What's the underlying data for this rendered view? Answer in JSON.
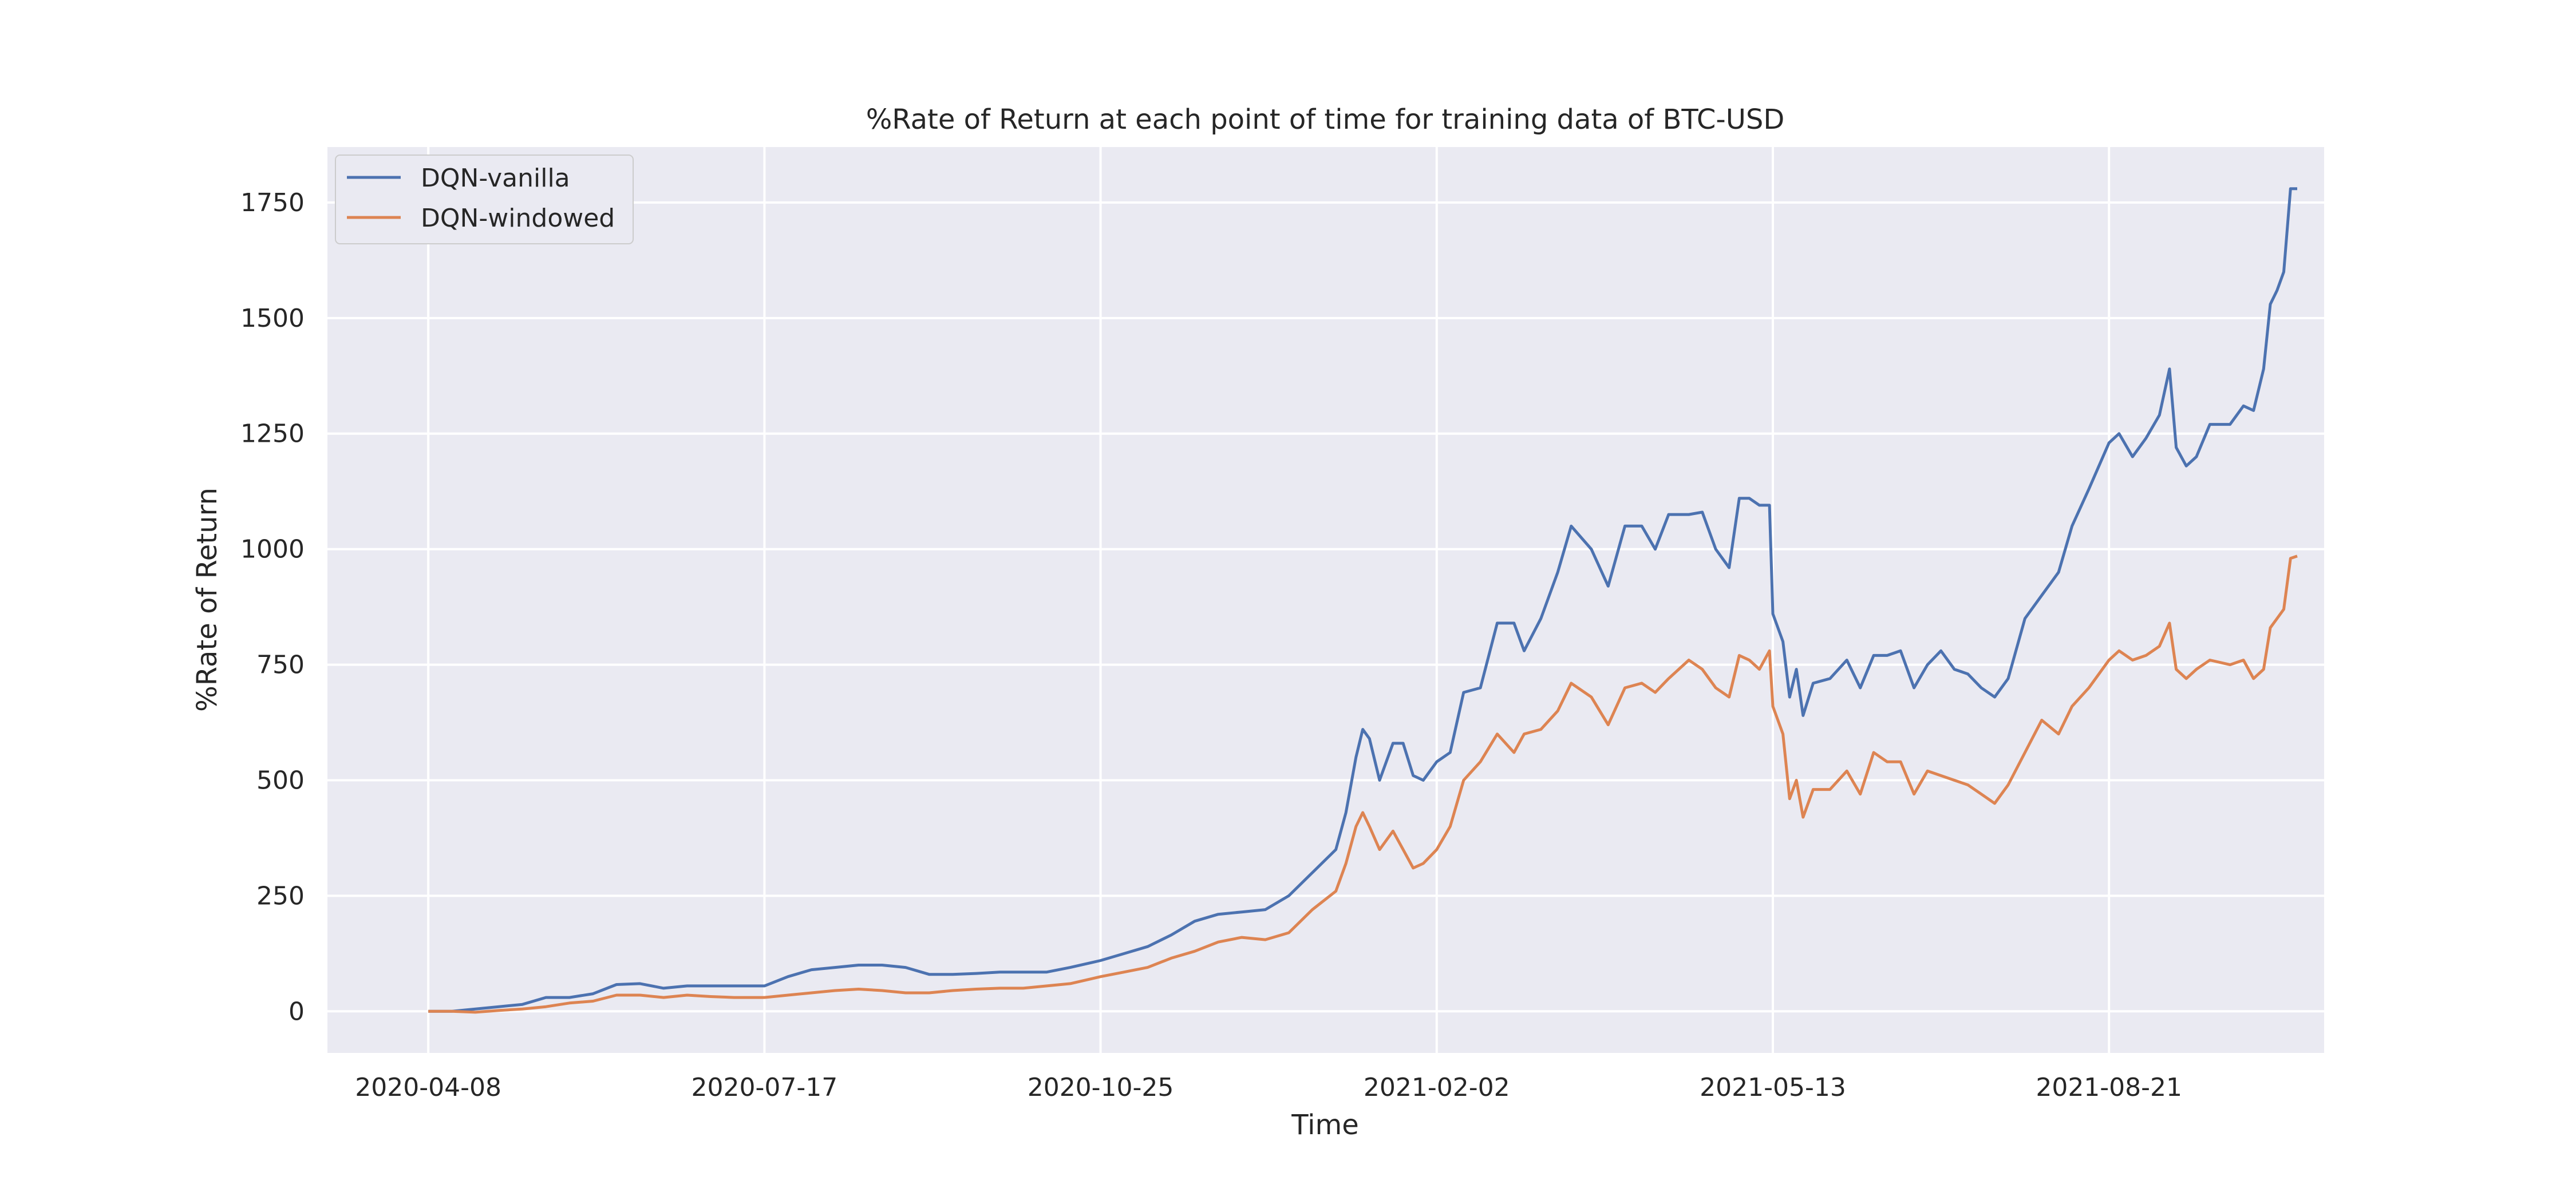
{
  "chart_data": {
    "type": "line",
    "title": "%Rate of Return at each point of time for training data of BTC-USD",
    "xlabel": "Time",
    "ylabel": "%Rate of Return",
    "x_range": [
      "2020-03-09",
      "2021-10-24"
    ],
    "ylim": [
      -90,
      1870
    ],
    "x_ticks": [
      "2020-04-08",
      "2020-07-17",
      "2020-10-25",
      "2021-02-02",
      "2021-05-13",
      "2021-08-21"
    ],
    "y_ticks": [
      0,
      250,
      500,
      750,
      1000,
      1250,
      1500,
      1750
    ],
    "grid": true,
    "legend_position": "top-left",
    "colors": {
      "background": "#eaeaf2",
      "grid": "#ffffff"
    },
    "series": [
      {
        "name": "DQN-vanilla",
        "color": "#4c72b0",
        "points": [
          [
            "2020-04-08",
            0
          ],
          [
            "2020-04-15",
            0
          ],
          [
            "2020-04-22",
            5
          ],
          [
            "2020-04-29",
            10
          ],
          [
            "2020-05-06",
            15
          ],
          [
            "2020-05-13",
            30
          ],
          [
            "2020-05-20",
            30
          ],
          [
            "2020-05-27",
            38
          ],
          [
            "2020-06-03",
            58
          ],
          [
            "2020-06-10",
            60
          ],
          [
            "2020-06-17",
            50
          ],
          [
            "2020-06-24",
            55
          ],
          [
            "2020-07-01",
            55
          ],
          [
            "2020-07-08",
            55
          ],
          [
            "2020-07-17",
            55
          ],
          [
            "2020-07-24",
            75
          ],
          [
            "2020-07-31",
            90
          ],
          [
            "2020-08-07",
            95
          ],
          [
            "2020-08-14",
            100
          ],
          [
            "2020-08-21",
            100
          ],
          [
            "2020-08-28",
            95
          ],
          [
            "2020-09-04",
            80
          ],
          [
            "2020-09-11",
            80
          ],
          [
            "2020-09-18",
            82
          ],
          [
            "2020-09-25",
            85
          ],
          [
            "2020-10-02",
            85
          ],
          [
            "2020-10-09",
            85
          ],
          [
            "2020-10-16",
            95
          ],
          [
            "2020-10-25",
            110
          ],
          [
            "2020-11-01",
            125
          ],
          [
            "2020-11-08",
            140
          ],
          [
            "2020-11-15",
            165
          ],
          [
            "2020-11-22",
            195
          ],
          [
            "2020-11-29",
            210
          ],
          [
            "2020-12-06",
            215
          ],
          [
            "2020-12-13",
            220
          ],
          [
            "2020-12-20",
            250
          ],
          [
            "2020-12-27",
            300
          ],
          [
            "2021-01-03",
            350
          ],
          [
            "2021-01-06",
            430
          ],
          [
            "2021-01-09",
            550
          ],
          [
            "2021-01-11",
            610
          ],
          [
            "2021-01-13",
            590
          ],
          [
            "2021-01-16",
            500
          ],
          [
            "2021-01-20",
            580
          ],
          [
            "2021-01-23",
            580
          ],
          [
            "2021-01-26",
            510
          ],
          [
            "2021-01-29",
            500
          ],
          [
            "2021-02-02",
            540
          ],
          [
            "2021-02-06",
            560
          ],
          [
            "2021-02-10",
            690
          ],
          [
            "2021-02-15",
            700
          ],
          [
            "2021-02-20",
            840
          ],
          [
            "2021-02-25",
            840
          ],
          [
            "2021-02-28",
            780
          ],
          [
            "2021-03-05",
            850
          ],
          [
            "2021-03-10",
            950
          ],
          [
            "2021-03-14",
            1050
          ],
          [
            "2021-03-20",
            1000
          ],
          [
            "2021-03-25",
            920
          ],
          [
            "2021-03-30",
            1050
          ],
          [
            "2021-04-04",
            1050
          ],
          [
            "2021-04-08",
            1000
          ],
          [
            "2021-04-12",
            1075
          ],
          [
            "2021-04-18",
            1075
          ],
          [
            "2021-04-22",
            1080
          ],
          [
            "2021-04-26",
            1000
          ],
          [
            "2021-04-30",
            960
          ],
          [
            "2021-05-03",
            1110
          ],
          [
            "2021-05-06",
            1110
          ],
          [
            "2021-05-09",
            1095
          ],
          [
            "2021-05-12",
            1095
          ],
          [
            "2021-05-13",
            860
          ],
          [
            "2021-05-16",
            800
          ],
          [
            "2021-05-18",
            680
          ],
          [
            "2021-05-20",
            740
          ],
          [
            "2021-05-22",
            640
          ],
          [
            "2021-05-25",
            710
          ],
          [
            "2021-05-30",
            720
          ],
          [
            "2021-06-04",
            760
          ],
          [
            "2021-06-08",
            700
          ],
          [
            "2021-06-12",
            770
          ],
          [
            "2021-06-16",
            770
          ],
          [
            "2021-06-20",
            780
          ],
          [
            "2021-06-24",
            700
          ],
          [
            "2021-06-28",
            750
          ],
          [
            "2021-07-02",
            780
          ],
          [
            "2021-07-06",
            740
          ],
          [
            "2021-07-10",
            730
          ],
          [
            "2021-07-14",
            700
          ],
          [
            "2021-07-18",
            680
          ],
          [
            "2021-07-22",
            720
          ],
          [
            "2021-07-27",
            850
          ],
          [
            "2021-08-01",
            900
          ],
          [
            "2021-08-06",
            950
          ],
          [
            "2021-08-10",
            1050
          ],
          [
            "2021-08-15",
            1130
          ],
          [
            "2021-08-21",
            1230
          ],
          [
            "2021-08-24",
            1250
          ],
          [
            "2021-08-28",
            1200
          ],
          [
            "2021-09-01",
            1240
          ],
          [
            "2021-09-05",
            1290
          ],
          [
            "2021-09-08",
            1390
          ],
          [
            "2021-09-10",
            1220
          ],
          [
            "2021-09-13",
            1180
          ],
          [
            "2021-09-16",
            1200
          ],
          [
            "2021-09-20",
            1270
          ],
          [
            "2021-09-26",
            1270
          ],
          [
            "2021-09-30",
            1310
          ],
          [
            "2021-10-03",
            1300
          ],
          [
            "2021-10-06",
            1390
          ],
          [
            "2021-10-08",
            1530
          ],
          [
            "2021-10-10",
            1560
          ],
          [
            "2021-10-12",
            1600
          ],
          [
            "2021-10-14",
            1780
          ],
          [
            "2021-10-16",
            1780
          ]
        ]
      },
      {
        "name": "DQN-windowed",
        "color": "#dd8452",
        "points": [
          [
            "2020-04-08",
            0
          ],
          [
            "2020-04-15",
            0
          ],
          [
            "2020-04-22",
            -2
          ],
          [
            "2020-04-29",
            2
          ],
          [
            "2020-05-06",
            5
          ],
          [
            "2020-05-13",
            10
          ],
          [
            "2020-05-20",
            18
          ],
          [
            "2020-05-27",
            22
          ],
          [
            "2020-06-03",
            35
          ],
          [
            "2020-06-10",
            35
          ],
          [
            "2020-06-17",
            30
          ],
          [
            "2020-06-24",
            35
          ],
          [
            "2020-07-01",
            32
          ],
          [
            "2020-07-08",
            30
          ],
          [
            "2020-07-17",
            30
          ],
          [
            "2020-07-24",
            35
          ],
          [
            "2020-07-31",
            40
          ],
          [
            "2020-08-07",
            45
          ],
          [
            "2020-08-14",
            48
          ],
          [
            "2020-08-21",
            45
          ],
          [
            "2020-08-28",
            40
          ],
          [
            "2020-09-04",
            40
          ],
          [
            "2020-09-11",
            45
          ],
          [
            "2020-09-18",
            48
          ],
          [
            "2020-09-25",
            50
          ],
          [
            "2020-10-02",
            50
          ],
          [
            "2020-10-09",
            55
          ],
          [
            "2020-10-16",
            60
          ],
          [
            "2020-10-25",
            75
          ],
          [
            "2020-11-01",
            85
          ],
          [
            "2020-11-08",
            95
          ],
          [
            "2020-11-15",
            115
          ],
          [
            "2020-11-22",
            130
          ],
          [
            "2020-11-29",
            150
          ],
          [
            "2020-12-06",
            160
          ],
          [
            "2020-12-13",
            155
          ],
          [
            "2020-12-20",
            170
          ],
          [
            "2020-12-27",
            220
          ],
          [
            "2021-01-03",
            260
          ],
          [
            "2021-01-06",
            320
          ],
          [
            "2021-01-09",
            400
          ],
          [
            "2021-01-11",
            430
          ],
          [
            "2021-01-13",
            400
          ],
          [
            "2021-01-16",
            350
          ],
          [
            "2021-01-20",
            390
          ],
          [
            "2021-01-23",
            350
          ],
          [
            "2021-01-26",
            310
          ],
          [
            "2021-01-29",
            320
          ],
          [
            "2021-02-02",
            350
          ],
          [
            "2021-02-06",
            400
          ],
          [
            "2021-02-10",
            500
          ],
          [
            "2021-02-15",
            540
          ],
          [
            "2021-02-20",
            600
          ],
          [
            "2021-02-25",
            560
          ],
          [
            "2021-02-28",
            600
          ],
          [
            "2021-03-05",
            610
          ],
          [
            "2021-03-10",
            650
          ],
          [
            "2021-03-14",
            710
          ],
          [
            "2021-03-20",
            680
          ],
          [
            "2021-03-25",
            620
          ],
          [
            "2021-03-30",
            700
          ],
          [
            "2021-04-04",
            710
          ],
          [
            "2021-04-08",
            690
          ],
          [
            "2021-04-12",
            720
          ],
          [
            "2021-04-18",
            760
          ],
          [
            "2021-04-22",
            740
          ],
          [
            "2021-04-26",
            700
          ],
          [
            "2021-04-30",
            680
          ],
          [
            "2021-05-03",
            770
          ],
          [
            "2021-05-06",
            760
          ],
          [
            "2021-05-09",
            740
          ],
          [
            "2021-05-12",
            780
          ],
          [
            "2021-05-13",
            660
          ],
          [
            "2021-05-16",
            600
          ],
          [
            "2021-05-18",
            460
          ],
          [
            "2021-05-20",
            500
          ],
          [
            "2021-05-22",
            420
          ],
          [
            "2021-05-25",
            480
          ],
          [
            "2021-05-30",
            480
          ],
          [
            "2021-06-04",
            520
          ],
          [
            "2021-06-08",
            470
          ],
          [
            "2021-06-12",
            560
          ],
          [
            "2021-06-16",
            540
          ],
          [
            "2021-06-20",
            540
          ],
          [
            "2021-06-24",
            470
          ],
          [
            "2021-06-28",
            520
          ],
          [
            "2021-07-02",
            510
          ],
          [
            "2021-07-06",
            500
          ],
          [
            "2021-07-10",
            490
          ],
          [
            "2021-07-14",
            470
          ],
          [
            "2021-07-18",
            450
          ],
          [
            "2021-07-22",
            490
          ],
          [
            "2021-07-27",
            560
          ],
          [
            "2021-08-01",
            630
          ],
          [
            "2021-08-06",
            600
          ],
          [
            "2021-08-10",
            660
          ],
          [
            "2021-08-15",
            700
          ],
          [
            "2021-08-21",
            760
          ],
          [
            "2021-08-24",
            780
          ],
          [
            "2021-08-28",
            760
          ],
          [
            "2021-09-01",
            770
          ],
          [
            "2021-09-05",
            790
          ],
          [
            "2021-09-08",
            840
          ],
          [
            "2021-09-10",
            740
          ],
          [
            "2021-09-13",
            720
          ],
          [
            "2021-09-16",
            740
          ],
          [
            "2021-09-20",
            760
          ],
          [
            "2021-09-26",
            750
          ],
          [
            "2021-09-30",
            760
          ],
          [
            "2021-10-03",
            720
          ],
          [
            "2021-10-06",
            740
          ],
          [
            "2021-10-08",
            830
          ],
          [
            "2021-10-10",
            850
          ],
          [
            "2021-10-12",
            870
          ],
          [
            "2021-10-14",
            980
          ],
          [
            "2021-10-16",
            985
          ]
        ]
      }
    ]
  }
}
